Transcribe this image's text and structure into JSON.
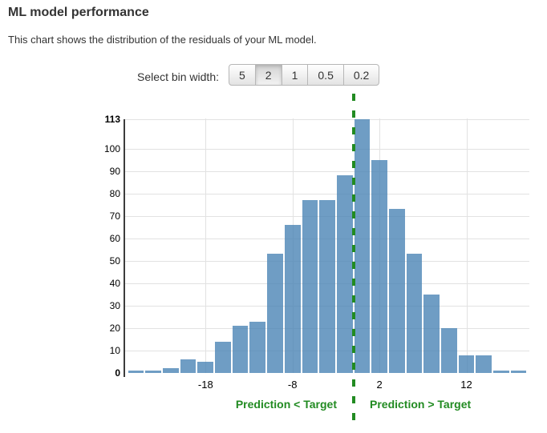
{
  "header": {
    "title": "ML model performance",
    "subtitle": "This chart shows the distribution of the residuals of your ML model."
  },
  "controls": {
    "label": "Select bin width:",
    "options": [
      {
        "label": "5",
        "selected": false
      },
      {
        "label": "2",
        "selected": true
      },
      {
        "label": "1",
        "selected": false
      },
      {
        "label": "0.5",
        "selected": false
      },
      {
        "label": "0.2",
        "selected": false
      }
    ]
  },
  "colors": {
    "bar": "#4682b4",
    "bar_opacity": 0.78,
    "grid": "#e2e2e2",
    "axis": "#3c3c3c",
    "green": "#228b22",
    "text": "#333333"
  },
  "chart_data": {
    "type": "bar",
    "title": "Distribution of residuals",
    "bin_width": 2,
    "bin_centers": [
      -26,
      -24,
      -22,
      -20,
      -18,
      -16,
      -14,
      -12,
      -10,
      -8,
      -6,
      -4,
      -2,
      0,
      2,
      4,
      6,
      8,
      10,
      12,
      14,
      16,
      18
    ],
    "values": [
      1,
      1,
      2,
      6,
      5,
      14,
      21,
      23,
      53,
      66,
      77,
      77,
      88,
      113,
      95,
      73,
      53,
      35,
      20,
      8,
      8,
      1,
      1
    ],
    "xlabel": "",
    "ylabel": "",
    "x_ticks": [
      -18,
      -8,
      2,
      12
    ],
    "y_ticks": [
      0,
      10,
      20,
      30,
      40,
      50,
      60,
      70,
      80,
      90,
      100,
      113
    ],
    "bold_y_ticks": [
      0,
      113
    ],
    "ylim": [
      0,
      113
    ],
    "grid": true,
    "legend_position": "none",
    "reference_line": {
      "x": -1,
      "style": "dashed",
      "meaning": "zero-residual separator"
    },
    "annotations": [
      {
        "text": "Prediction < Target",
        "side": "left"
      },
      {
        "text": "Prediction > Target",
        "side": "right"
      }
    ]
  }
}
